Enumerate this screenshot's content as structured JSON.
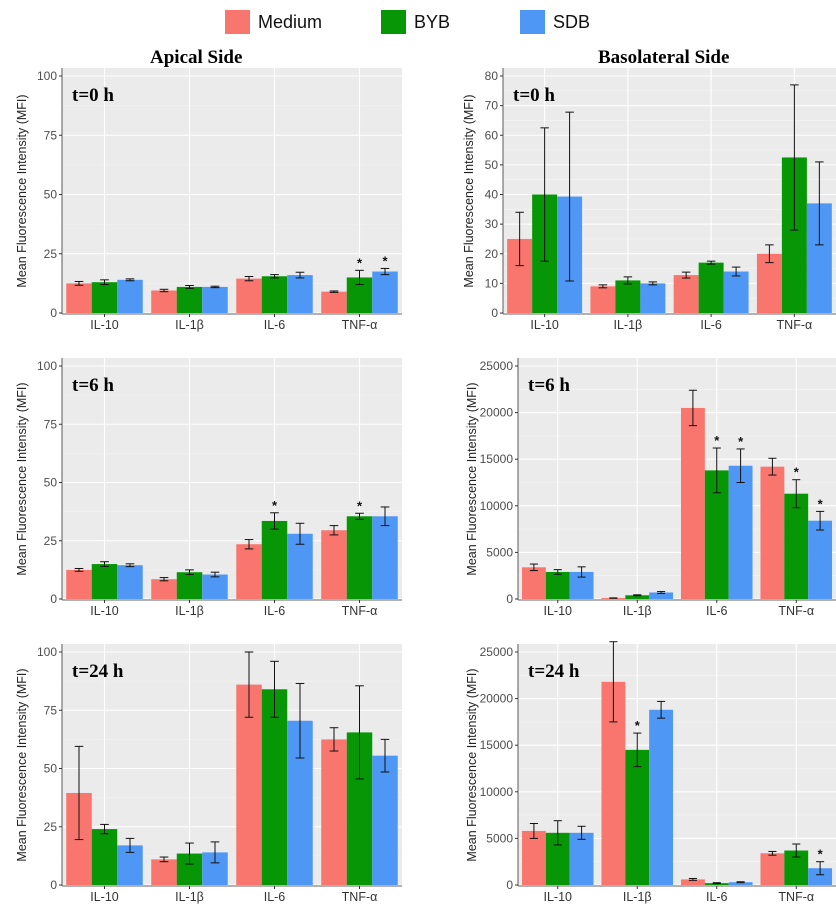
{
  "legend": [
    {
      "name": "Medium",
      "color": "#F8766D"
    },
    {
      "name": "BYB",
      "color": "#069606"
    },
    {
      "name": "SDB",
      "color": "#4F97F4"
    }
  ],
  "column_titles": {
    "left": "Apical Side",
    "right": "Basolateral Side"
  },
  "chart_data": [
    {
      "type": "bar",
      "title": "t=0 h",
      "column": "Apical Side",
      "ylabel": "Mean Fluorescence Intensity (MFI)",
      "categories": [
        "IL-10",
        "IL-1β",
        "IL-6",
        "TNF-α"
      ],
      "ylim": [
        0,
        100
      ],
      "yticks": [
        0,
        25,
        50,
        75,
        100
      ],
      "grid": true,
      "series": [
        {
          "name": "Medium",
          "values": [
            12.5,
            9.5,
            14.5,
            9.0
          ],
          "errors": [
            0.8,
            0.5,
            0.9,
            0.3
          ]
        },
        {
          "name": "BYB",
          "values": [
            13.0,
            11.0,
            15.5,
            15.0
          ],
          "errors": [
            1.0,
            0.6,
            0.7,
            3.0
          ]
        },
        {
          "name": "SDB",
          "values": [
            14.0,
            11.0,
            16.0,
            17.5
          ],
          "errors": [
            0.4,
            0.3,
            1.2,
            1.3
          ]
        }
      ],
      "significance": [
        {
          "category": "TNF-α",
          "series": "BYB",
          "label": "*"
        },
        {
          "category": "TNF-α",
          "series": "SDB",
          "label": "*"
        }
      ]
    },
    {
      "type": "bar",
      "title": "t=0 h",
      "column": "Basolateral Side",
      "ylabel": "Mean Fluorescence Intensity (MFI)",
      "categories": [
        "IL-10",
        "IL-1β",
        "IL-6",
        "TNF-α"
      ],
      "ylim": [
        0,
        80
      ],
      "yticks": [
        0,
        10,
        20,
        30,
        40,
        50,
        60,
        70,
        80
      ],
      "grid": true,
      "series": [
        {
          "name": "Medium",
          "values": [
            25.0,
            9.0,
            12.8,
            20.0
          ],
          "errors": [
            9.0,
            0.5,
            1.0,
            3.0
          ]
        },
        {
          "name": "BYB",
          "values": [
            40.0,
            11.0,
            17.0,
            52.5
          ],
          "errors": [
            22.5,
            1.2,
            0.5,
            24.5
          ]
        },
        {
          "name": "SDB",
          "values": [
            39.3,
            10.0,
            14.0,
            37.0
          ],
          "errors": [
            28.5,
            0.5,
            1.5,
            14.0
          ]
        }
      ],
      "significance": []
    },
    {
      "type": "bar",
      "title": "t=6 h",
      "column": "Apical Side",
      "ylabel": "Mean Fluorescence Intensity (MFI)",
      "categories": [
        "IL-10",
        "IL-1β",
        "IL-6",
        "TNF-α"
      ],
      "ylim": [
        0,
        100
      ],
      "yticks": [
        0,
        25,
        50,
        75,
        100
      ],
      "grid": true,
      "series": [
        {
          "name": "Medium",
          "values": [
            12.5,
            8.5,
            23.5,
            29.5
          ],
          "errors": [
            0.6,
            0.7,
            2.0,
            2.0
          ]
        },
        {
          "name": "BYB",
          "values": [
            15.0,
            11.5,
            33.5,
            35.5
          ],
          "errors": [
            1.0,
            1.0,
            3.5,
            1.3
          ]
        },
        {
          "name": "SDB",
          "values": [
            14.5,
            10.5,
            28.0,
            35.5
          ],
          "errors": [
            0.6,
            1.0,
            4.5,
            4.0
          ]
        }
      ],
      "significance": [
        {
          "category": "IL-6",
          "series": "BYB",
          "label": "*"
        },
        {
          "category": "TNF-α",
          "series": "BYB",
          "label": "*"
        }
      ]
    },
    {
      "type": "bar",
      "title": "t=6 h",
      "column": "Basolateral Side",
      "ylabel": "Mean Fluorescence Intensity (MFI)",
      "categories": [
        "IL-10",
        "IL-1β",
        "IL-6",
        "TNF-α"
      ],
      "ylim": [
        0,
        25000
      ],
      "yticks": [
        0,
        5000,
        10000,
        15000,
        20000,
        25000
      ],
      "grid": true,
      "series": [
        {
          "name": "Medium",
          "values": [
            3400,
            100,
            20500,
            14200
          ],
          "errors": [
            350,
            20,
            1900,
            900
          ]
        },
        {
          "name": "BYB",
          "values": [
            2900,
            400,
            13800,
            11300
          ],
          "errors": [
            250,
            50,
            2400,
            1500
          ]
        },
        {
          "name": "SDB",
          "values": [
            2900,
            700,
            14300,
            8400
          ],
          "errors": [
            550,
            100,
            1800,
            1000
          ]
        }
      ],
      "significance": [
        {
          "category": "IL-6",
          "series": "BYB",
          "label": "*"
        },
        {
          "category": "IL-6",
          "series": "SDB",
          "label": "*"
        },
        {
          "category": "TNF-α",
          "series": "BYB",
          "label": "*"
        },
        {
          "category": "TNF-α",
          "series": "SDB",
          "label": "*"
        }
      ]
    },
    {
      "type": "bar",
      "title": "t=24 h",
      "column": "Apical Side",
      "ylabel": "Mean Fluorescence Intensity (MFI)",
      "categories": [
        "IL-10",
        "IL-1β",
        "IL-6",
        "TNF-α"
      ],
      "ylim": [
        0,
        100
      ],
      "yticks": [
        0,
        25,
        50,
        75,
        100
      ],
      "grid": true,
      "series": [
        {
          "name": "Medium",
          "values": [
            39.5,
            11.0,
            86.0,
            62.5
          ],
          "errors": [
            20.0,
            1.0,
            14.0,
            5.0
          ]
        },
        {
          "name": "BYB",
          "values": [
            24.0,
            13.5,
            84.0,
            65.5
          ],
          "errors": [
            2.0,
            4.5,
            12.0,
            20.0
          ]
        },
        {
          "name": "SDB",
          "values": [
            17.0,
            14.0,
            70.5,
            55.5
          ],
          "errors": [
            3.0,
            4.5,
            16.0,
            7.0
          ]
        }
      ],
      "significance": []
    },
    {
      "type": "bar",
      "title": "t=24 h",
      "column": "Basolateral Side",
      "ylabel": "Mean Fluorescence Intensity (MFI)",
      "categories": [
        "IL-10",
        "IL-1β",
        "IL-6",
        "TNF-α"
      ],
      "ylim": [
        0,
        25000
      ],
      "yticks": [
        0,
        5000,
        10000,
        15000,
        20000,
        25000
      ],
      "grid": true,
      "series": [
        {
          "name": "Medium",
          "values": [
            5800,
            21800,
            600,
            3400
          ],
          "errors": [
            800,
            4300,
            100,
            200
          ]
        },
        {
          "name": "BYB",
          "values": [
            5600,
            14500,
            200,
            3700
          ],
          "errors": [
            1300,
            1800,
            50,
            700
          ]
        },
        {
          "name": "SDB",
          "values": [
            5600,
            18800,
            300,
            1800
          ],
          "errors": [
            700,
            900,
            50,
            700
          ]
        }
      ],
      "significance": [
        {
          "category": "IL-1β",
          "series": "BYB",
          "label": "*"
        },
        {
          "category": "TNF-α",
          "series": "SDB",
          "label": "*"
        }
      ]
    }
  ]
}
